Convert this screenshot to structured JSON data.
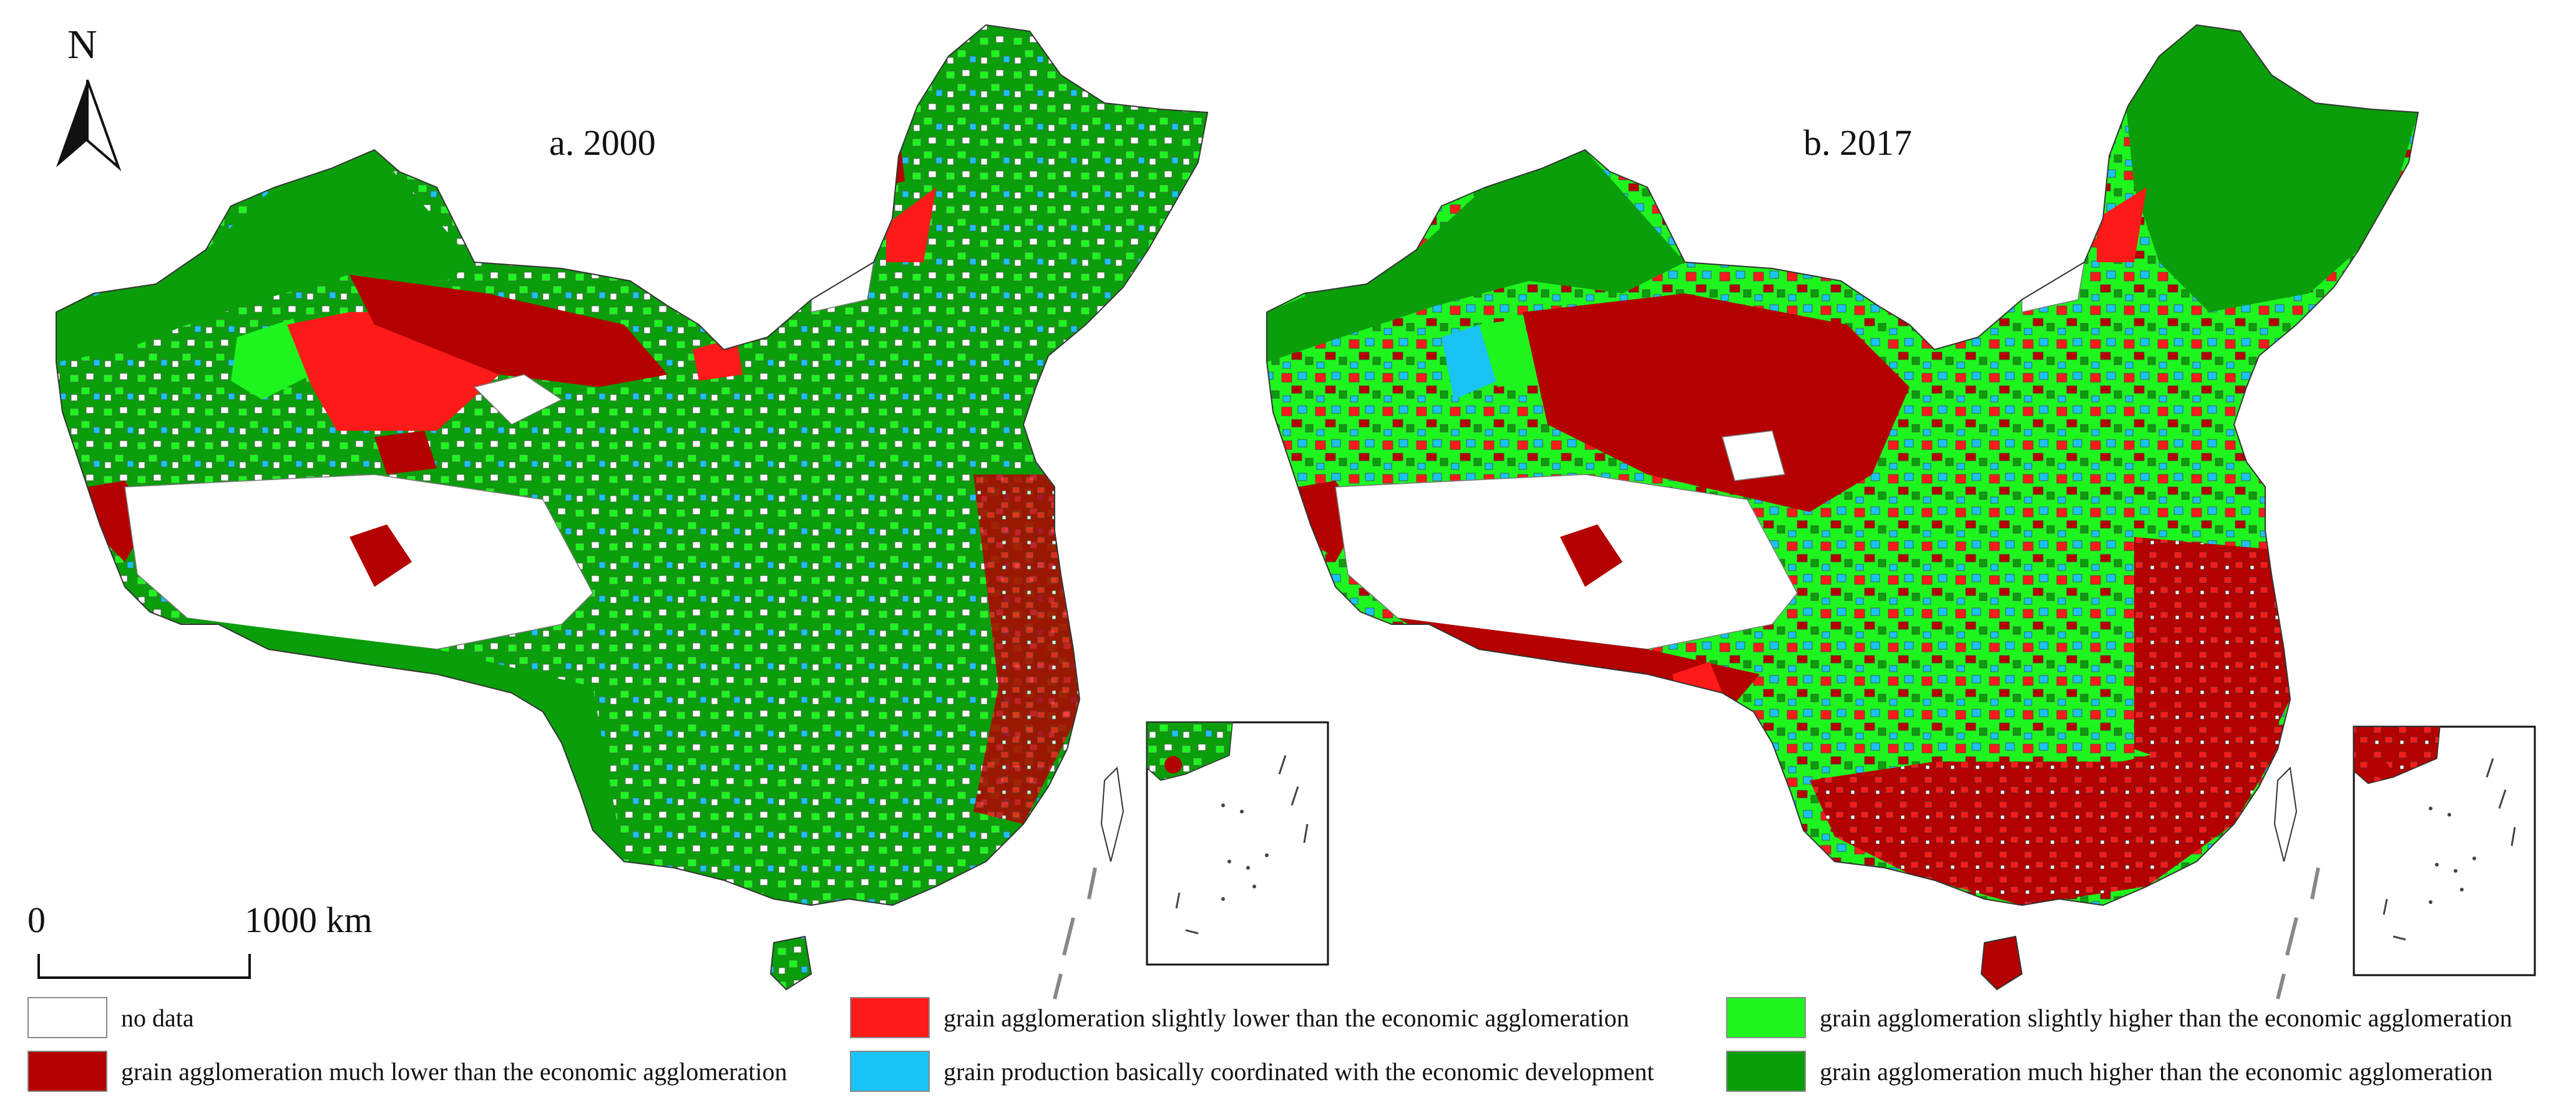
{
  "north_arrow": {
    "label": "N",
    "icon": "north-arrow-icon"
  },
  "maps": [
    {
      "id": "a",
      "title": "a. 2000"
    },
    {
      "id": "b",
      "title": "b. 2017"
    }
  ],
  "scale_bar": {
    "start_label": "0",
    "end_label": "1000 km"
  },
  "legend": [
    {
      "key": "no_data",
      "label": "no data",
      "color": "#ffffff"
    },
    {
      "key": "much_lower",
      "label": "grain agglomeration much lower than the economic agglomeration",
      "color": "#b40000"
    },
    {
      "key": "slightly_lower",
      "label": "grain agglomeration slightly lower than the economic agglomeration",
      "color": "#ff1a1a"
    },
    {
      "key": "coordinated",
      "label": "grain production basically coordinated with the economic development",
      "color": "#19c3f5"
    },
    {
      "key": "slightly_higher",
      "label": "grain agglomeration slightly higher than the economic agglomeration",
      "color": "#1ef51e"
    },
    {
      "key": "much_higher",
      "label": "grain agglomeration much higher than the economic agglomeration",
      "color": "#0a9e0a"
    }
  ]
}
